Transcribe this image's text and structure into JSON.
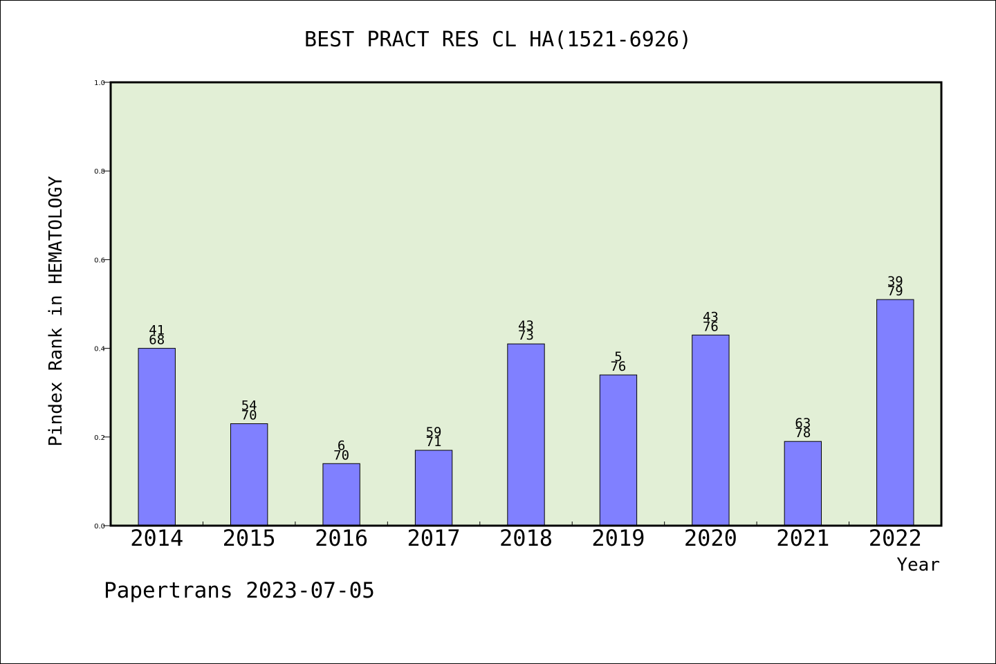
{
  "chart_data": {
    "type": "bar",
    "title": "BEST PRACT RES CL HA(1521-6926)",
    "xlabel": "Year",
    "ylabel": "Pindex Rank in HEMATOLOGY",
    "ylim": [
      0.0,
      1.0
    ],
    "yticks": [
      "0.0",
      "0.2",
      "0.4",
      "0.6",
      "0.8",
      "1.0"
    ],
    "categories": [
      "2014",
      "2015",
      "2016",
      "2017",
      "2018",
      "2019",
      "2020",
      "2021",
      "2022"
    ],
    "values": [
      0.4,
      0.23,
      0.14,
      0.17,
      0.41,
      0.34,
      0.43,
      0.19,
      0.51
    ],
    "label_top": [
      "41",
      "54",
      "6",
      "59",
      "43",
      "5",
      "43",
      "63",
      "39"
    ],
    "label_bottom": [
      "68",
      "70",
      "70",
      "71",
      "73",
      "76",
      "76",
      "78",
      "79"
    ],
    "grid": false,
    "plot_background": "#e2efd6",
    "bar_color": "#8080ff"
  },
  "footer": "Papertrans 2023-07-05"
}
